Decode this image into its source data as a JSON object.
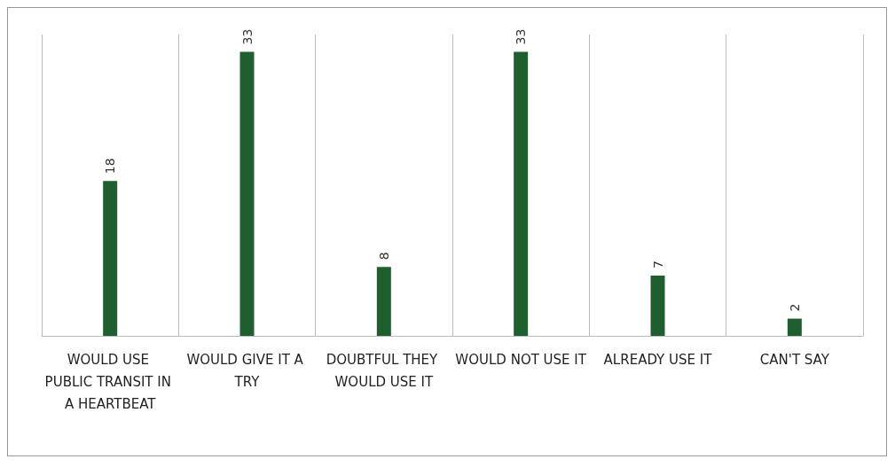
{
  "chart_data": {
    "type": "bar",
    "categories": [
      "WOULD USE PUBLIC TRANSIT IN A HEARTBEAT",
      "WOULD GIVE IT A TRY",
      "DOUBTFUL THEY WOULD USE IT",
      "WOULD NOT USE IT",
      "ALREADY USE IT",
      "CAN'T SAY"
    ],
    "values": [
      18,
      33,
      8,
      33,
      7,
      2
    ],
    "color": "#1f5e2f",
    "data_labels": true,
    "grid": "x"
  }
}
